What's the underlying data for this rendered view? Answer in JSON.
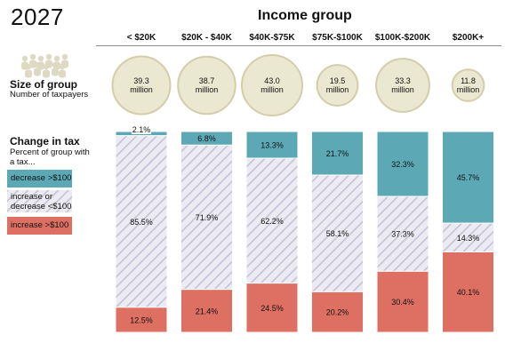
{
  "header": {
    "year": "2027",
    "group_title": "Income group"
  },
  "legend": {
    "size_title": "Size of group",
    "size_sub": "Number of taxpayers",
    "change_title": "Change in tax",
    "change_sub": "Percent of group with a tax...",
    "decrease_label": "decrease >$100",
    "neutral_label": "increase or decrease <$100",
    "increase_label": "increase >$100"
  },
  "colors": {
    "decrease": "#5ca9b5",
    "increase": "#dd7063",
    "hatch_bg": "#ecebf3",
    "hatch_line": "#c4c3d6",
    "circle_fill": "#ebe8d2",
    "circle_stroke": "#d2ceaa",
    "people_icon": "#ddd9c2"
  },
  "chart_data": {
    "type": "bar",
    "stacked": true,
    "categories": [
      "< $20K",
      "$20K - $40K",
      "$40K-$75K",
      "$75K-$100K",
      "$100K-$200K",
      "$200K+"
    ],
    "taxpayers_millions": [
      39.3,
      38.7,
      43.0,
      19.5,
      33.3,
      11.8
    ],
    "taxpayers_labels": [
      "39.3\nmillion",
      "38.7\nmillion",
      "43.0\nmillion",
      "19.5\nmillion",
      "33.3\nmillion",
      "11.8\nmillion"
    ],
    "series": [
      {
        "name": "decrease >$100",
        "values": [
          2.1,
          6.8,
          13.3,
          21.7,
          32.3,
          45.7
        ],
        "labels": [
          "2.1%",
          "6.8%",
          "13.3%",
          "21.7%",
          "32.3%",
          "45.7%"
        ]
      },
      {
        "name": "increase or decrease <$100",
        "values": [
          85.5,
          71.9,
          62.2,
          58.1,
          37.3,
          14.3
        ],
        "labels": [
          "85.5%",
          "71.9%",
          "62.2%",
          "58.1%",
          "37.3%",
          "14.3%"
        ]
      },
      {
        "name": "increase >$100",
        "values": [
          12.5,
          21.4,
          24.5,
          20.2,
          30.4,
          40.1
        ],
        "labels": [
          "12.5%",
          "21.4%",
          "24.5%",
          "20.2%",
          "30.4%",
          "40.1%"
        ]
      }
    ],
    "ylim": [
      0,
      100
    ]
  }
}
